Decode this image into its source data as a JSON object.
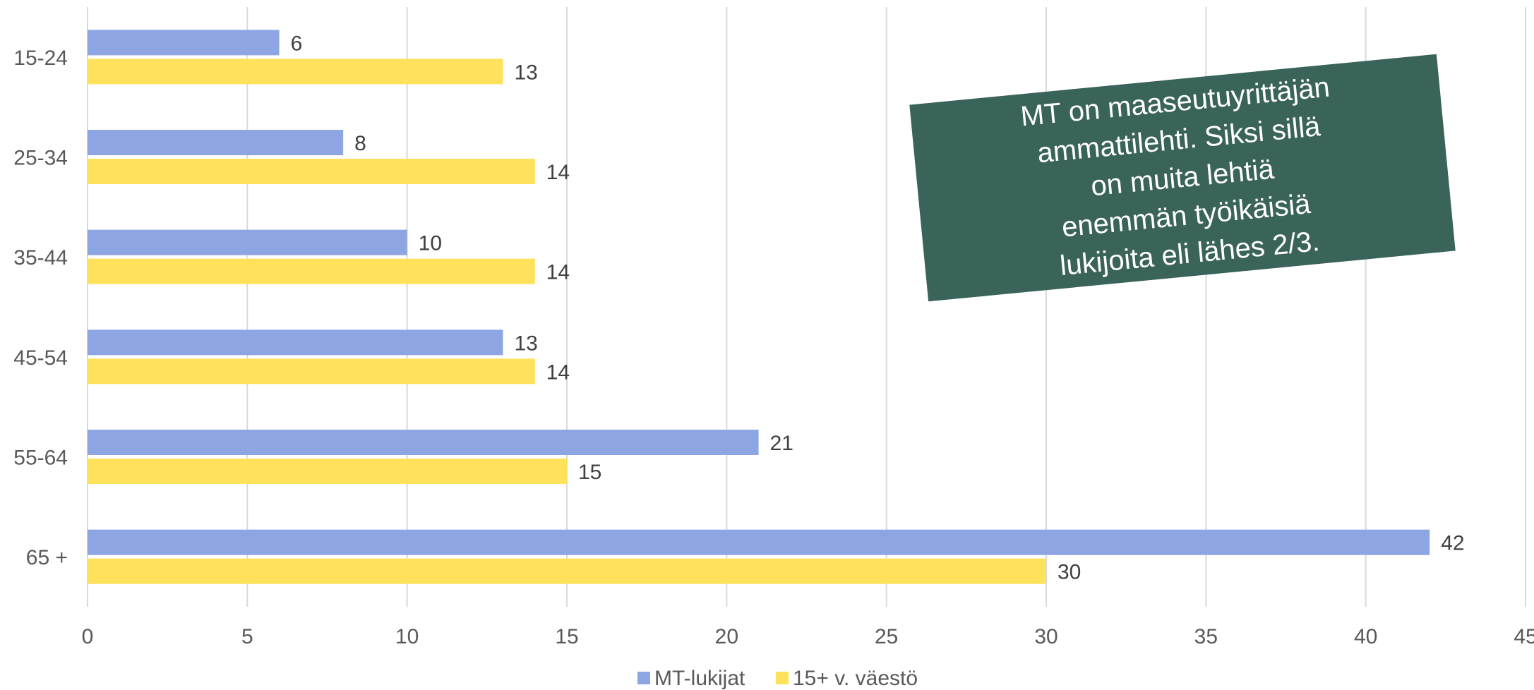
{
  "chart_data": {
    "type": "bar",
    "orientation": "horizontal",
    "categories": [
      "15-24",
      "25-34",
      "35-44",
      "45-54",
      "55-64",
      "65 +"
    ],
    "series": [
      {
        "name": "MT-lukijat",
        "values": [
          6,
          8,
          10,
          13,
          21,
          42
        ],
        "color": "#8EA5E4"
      },
      {
        "name": "15+ v. väestö",
        "values": [
          13,
          14,
          14,
          14,
          15,
          30
        ],
        "color": "#FFE15C"
      }
    ],
    "xlim": [
      0,
      45
    ],
    "x_ticks": [
      0,
      5,
      10,
      15,
      20,
      25,
      30,
      35,
      40,
      45
    ],
    "grid": true,
    "legend_position": "bottom",
    "annotation": {
      "lines": [
        "MT on maaseutuyrittäjän",
        "ammattilehti. Siksi sillä",
        "on muita lehtiä",
        "enemmän työikäisiä",
        "lukijoita eli lähes 2/3."
      ],
      "background": "#3A6359",
      "text_color": "#FFFFFF"
    }
  },
  "colors": {
    "gridline": "#D9D9D9",
    "axis_text": "#595959"
  }
}
